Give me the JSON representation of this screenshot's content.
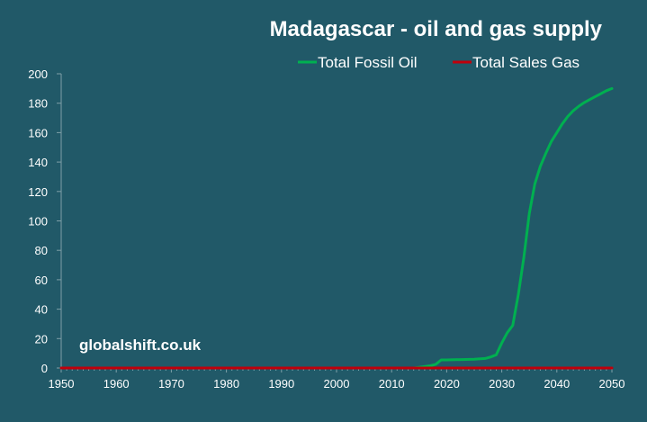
{
  "chart_data": {
    "type": "line",
    "title": "Madagascar - oil and gas supply",
    "xlabel": "",
    "ylabel": "",
    "xlim": [
      1950,
      2050
    ],
    "ylim": [
      0,
      200
    ],
    "x_ticks": [
      "1950",
      "1960",
      "1970",
      "1980",
      "1990",
      "2000",
      "2010",
      "2020",
      "2030",
      "2040",
      "2050"
    ],
    "y_ticks": [
      "0",
      "20",
      "40",
      "60",
      "80",
      "100",
      "120",
      "140",
      "160",
      "180",
      "200"
    ],
    "grid": false,
    "legend_position": "top-right",
    "series": [
      {
        "name": "Total Fossil Oil",
        "color": "#00b050",
        "x": [
          1950,
          2014,
          2015,
          2016,
          2017,
          2018,
          2019,
          2020,
          2025,
          2027,
          2028,
          2029,
          2030,
          2031,
          2032,
          2033,
          2034,
          2035,
          2036,
          2037,
          2038,
          2039,
          2040,
          2041,
          2042,
          2043,
          2044,
          2045,
          2046,
          2047,
          2048,
          2049,
          2050
        ],
        "values": [
          0,
          0,
          0.5,
          1,
          1.5,
          2.5,
          5.5,
          5.5,
          6,
          6.5,
          7.5,
          9,
          17,
          24,
          29,
          50,
          75,
          105,
          125,
          137,
          146,
          154,
          160,
          166,
          171,
          175,
          178,
          180.5,
          182.5,
          184.5,
          186.5,
          188.5,
          190
        ]
      },
      {
        "name": "Total Sales Gas",
        "color": "#c0000b",
        "x": [
          1950,
          2050
        ],
        "values": [
          0,
          0
        ]
      }
    ],
    "annotations": [
      "globalshift.co.uk"
    ]
  }
}
